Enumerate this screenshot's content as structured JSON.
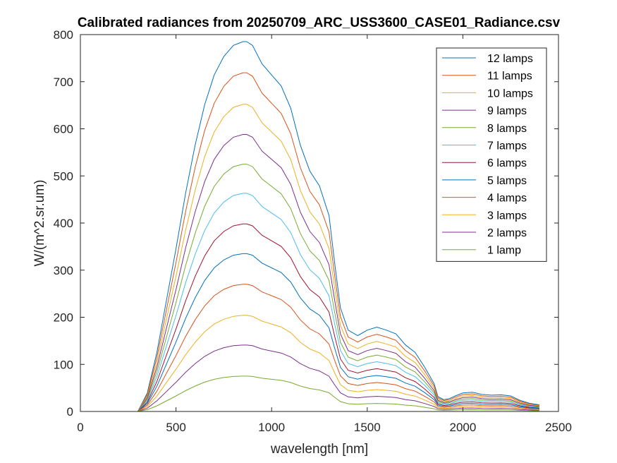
{
  "chart_data": {
    "type": "line",
    "title": "Calibrated radiances from 20250709_ARC_USS3600_CASE01_Radiance.csv",
    "xlabel": "wavelength [nm]",
    "ylabel": "W/(m^2.sr.um)",
    "xlim": [
      0,
      2500
    ],
    "ylim": [
      0,
      800
    ],
    "xticks": [
      0,
      500,
      1000,
      1500,
      2000,
      2500
    ],
    "yticks": [
      0,
      100,
      200,
      300,
      400,
      500,
      600,
      700,
      800
    ],
    "grid": false,
    "legend_position": "top-right",
    "base_profile": {
      "x": [
        300,
        350,
        400,
        450,
        500,
        550,
        600,
        650,
        700,
        750,
        800,
        850,
        870,
        900,
        950,
        1000,
        1050,
        1100,
        1150,
        1200,
        1250,
        1300,
        1330,
        1360,
        1400,
        1450,
        1500,
        1550,
        1600,
        1650,
        1700,
        1750,
        1800,
        1850,
        1870,
        1900,
        1930,
        1960,
        2000,
        2050,
        2100,
        2150,
        2200,
        2250,
        2300,
        2350,
        2400
      ],
      "y": [
        0.0,
        0.05,
        0.16,
        0.3,
        0.44,
        0.59,
        0.72,
        0.83,
        0.91,
        0.96,
        0.99,
        1.0,
        1.0,
        0.99,
        0.94,
        0.91,
        0.88,
        0.82,
        0.72,
        0.65,
        0.61,
        0.53,
        0.4,
        0.28,
        0.22,
        0.205,
        0.22,
        0.228,
        0.22,
        0.21,
        0.18,
        0.16,
        0.12,
        0.075,
        0.04,
        0.032,
        0.035,
        0.042,
        0.05,
        0.052,
        0.046,
        0.044,
        0.045,
        0.042,
        0.03,
        0.022,
        0.018
      ]
    },
    "series": [
      {
        "name": "12 lamps",
        "peak": 785,
        "color": "#0072BD"
      },
      {
        "name": "11 lamps",
        "peak": 719,
        "color": "#D95319"
      },
      {
        "name": "10 lamps",
        "peak": 652,
        "color": "#EDB120"
      },
      {
        "name": "9 lamps",
        "peak": 588,
        "color": "#7E2F8E"
      },
      {
        "name": "8 lamps",
        "peak": 525,
        "color": "#77AC30"
      },
      {
        "name": "7 lamps",
        "peak": 463,
        "color": "#4DBEEE"
      },
      {
        "name": "6 lamps",
        "peak": 398,
        "color": "#A2142F"
      },
      {
        "name": "5 lamps",
        "peak": 335,
        "color": "#0072BD"
      },
      {
        "name": "4 lamps",
        "peak": 270,
        "color": "#D95319"
      },
      {
        "name": "3 lamps",
        "peak": 204,
        "color": "#EDB120"
      },
      {
        "name": "2 lamps",
        "peak": 141,
        "color": "#7E2F8E"
      },
      {
        "name": "1 lamp",
        "peak": 75,
        "color": "#77AC30"
      }
    ]
  }
}
